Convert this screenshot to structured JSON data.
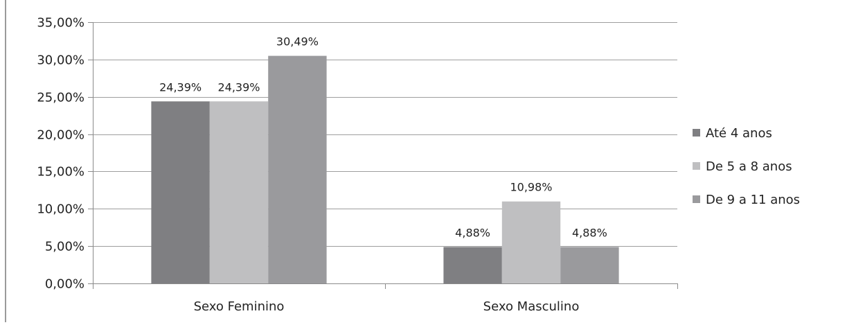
{
  "chart_data": {
    "type": "bar",
    "categories": [
      "Sexo Feminino",
      "Sexo Masculino"
    ],
    "series": [
      {
        "name": "Até 4 anos",
        "values": [
          24.39,
          4.88
        ],
        "labels": [
          "24,39%",
          "4,88%"
        ],
        "color": "#7f7f82"
      },
      {
        "name": "De 5 a 8 anos",
        "values": [
          24.39,
          10.98
        ],
        "labels": [
          "24,39%",
          "10,98%"
        ],
        "color": "#bfbfc1"
      },
      {
        "name": "De 9 a 11 anos",
        "values": [
          30.49,
          4.88
        ],
        "labels": [
          "30,49%",
          "4,88%"
        ],
        "color": "#9a9a9d"
      }
    ],
    "ylim": [
      0,
      35
    ],
    "yticks": [
      {
        "value": 0,
        "label": "0,00%"
      },
      {
        "value": 5,
        "label": "5,00%"
      },
      {
        "value": 10,
        "label": "10,00%"
      },
      {
        "value": 15,
        "label": "15,00%"
      },
      {
        "value": 20,
        "label": "20,00%"
      },
      {
        "value": 25,
        "label": "25,00%"
      },
      {
        "value": 30,
        "label": "30,00%"
      },
      {
        "value": 35,
        "label": "35,00%"
      }
    ],
    "grid": true,
    "legend_position": "right",
    "title": "",
    "xlabel": "",
    "ylabel": ""
  }
}
